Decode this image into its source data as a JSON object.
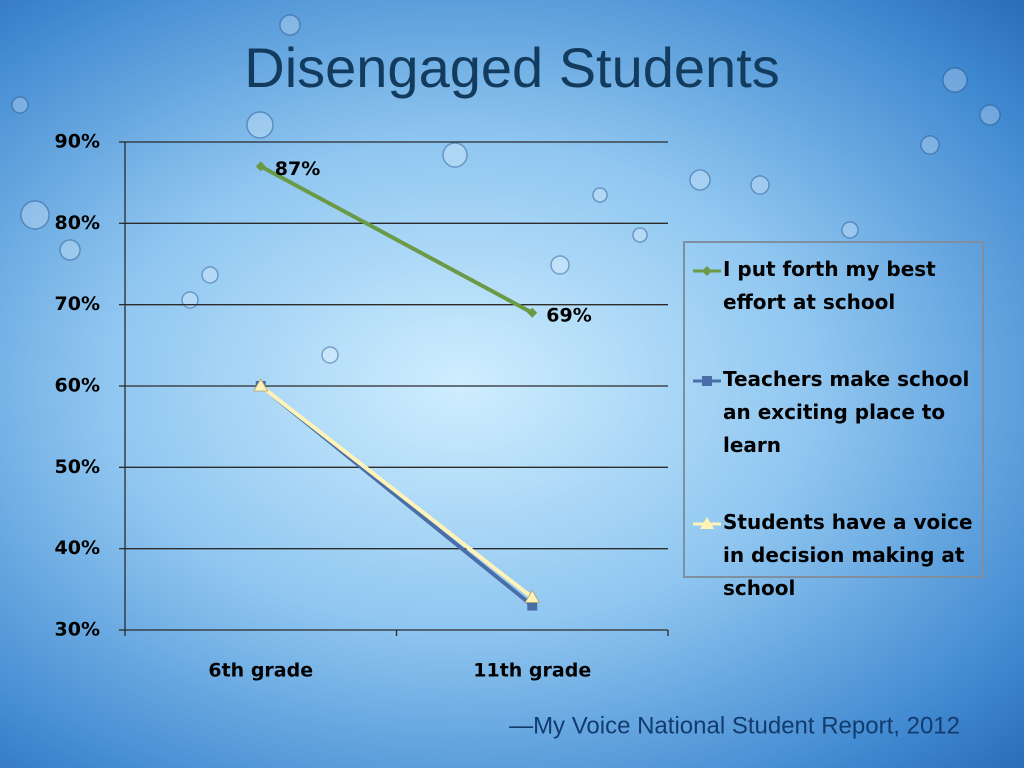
{
  "chart_data": {
    "type": "line",
    "title": "Disengaged Students",
    "source": "—My Voice National Student Report, 2012",
    "categories": [
      "6th grade",
      "11th grade"
    ],
    "series": [
      {
        "name": "I put forth my best effort at school",
        "color": "#6a9a45",
        "marker": "diamond",
        "values": [
          87,
          69
        ],
        "value_labels": [
          "87%",
          "69%"
        ]
      },
      {
        "name": "Teachers make school an exciting place to learn",
        "color": "#4a6fa8",
        "marker": "square",
        "values": [
          60,
          33
        ]
      },
      {
        "name": "Students have a voice in decision making at school",
        "color": "#fff3b8",
        "marker": "triangle",
        "values": [
          60,
          34
        ]
      }
    ],
    "ylim": [
      30,
      90
    ],
    "yticks": [
      {
        "value": 30,
        "label": "30%"
      },
      {
        "value": 40,
        "label": "40%"
      },
      {
        "value": 50,
        "label": "50%"
      },
      {
        "value": 60,
        "label": "60%"
      },
      {
        "value": 70,
        "label": "70%"
      },
      {
        "value": 80,
        "label": "80%"
      },
      {
        "value": 90,
        "label": "90%"
      }
    ],
    "grid": true,
    "legend": "right"
  }
}
